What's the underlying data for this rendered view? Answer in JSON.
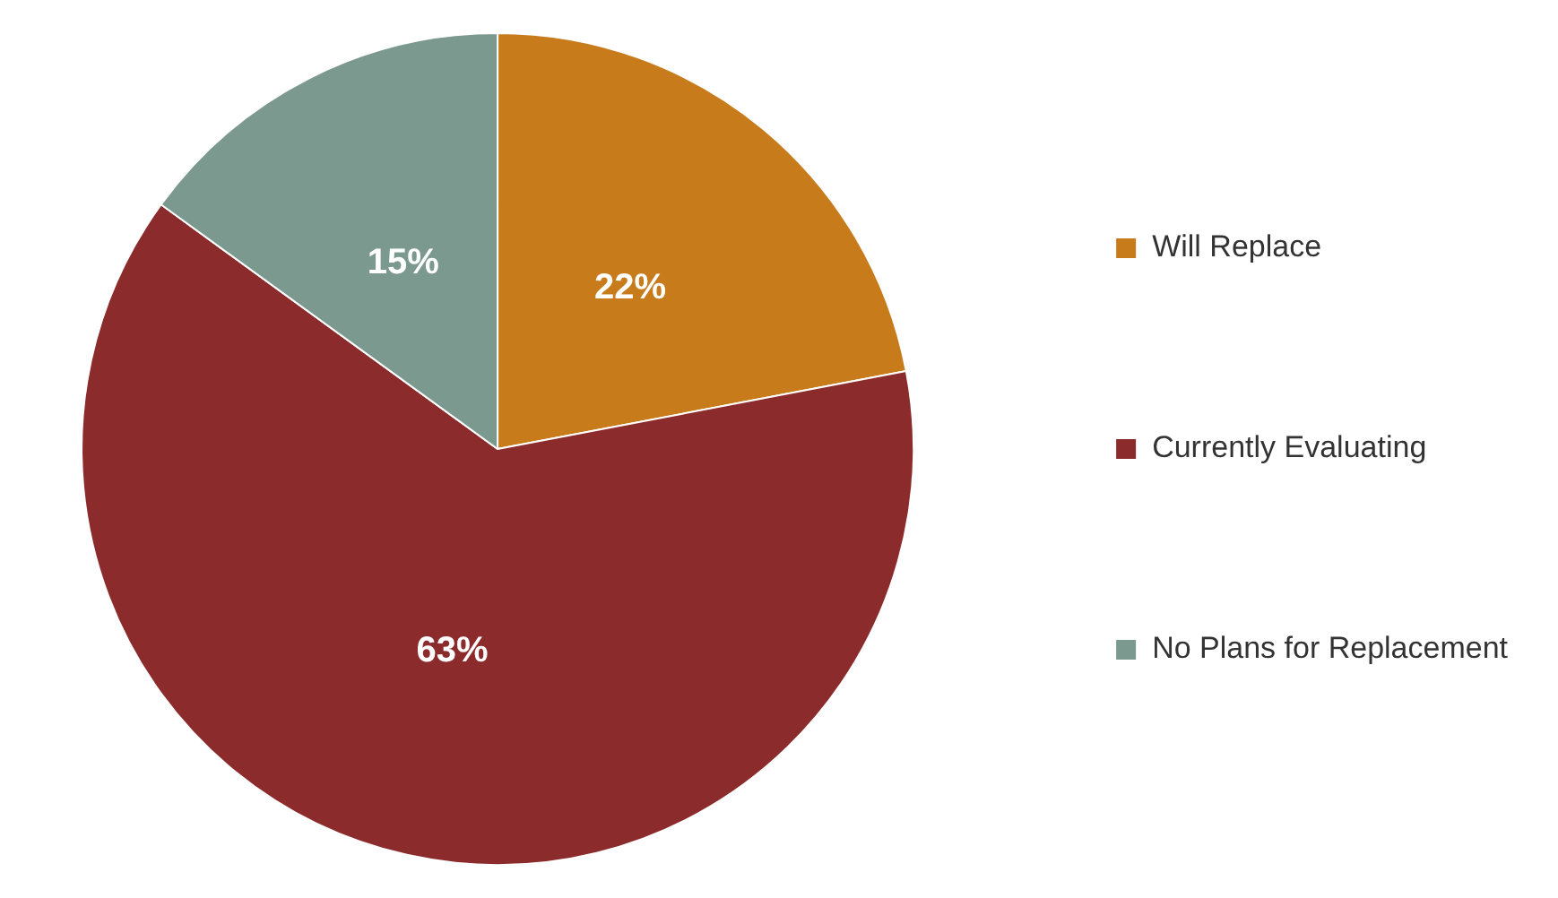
{
  "chart_data": {
    "type": "pie",
    "categories": [
      "Will Replace",
      "Currently Evaluating",
      "No Plans for Replacement"
    ],
    "values": [
      22,
      63,
      15
    ],
    "colors": [
      "#c77b1b",
      "#8c2b2b",
      "#7b998f"
    ],
    "value_labels": [
      "22%",
      "63%",
      "15%"
    ],
    "legend": "right"
  }
}
